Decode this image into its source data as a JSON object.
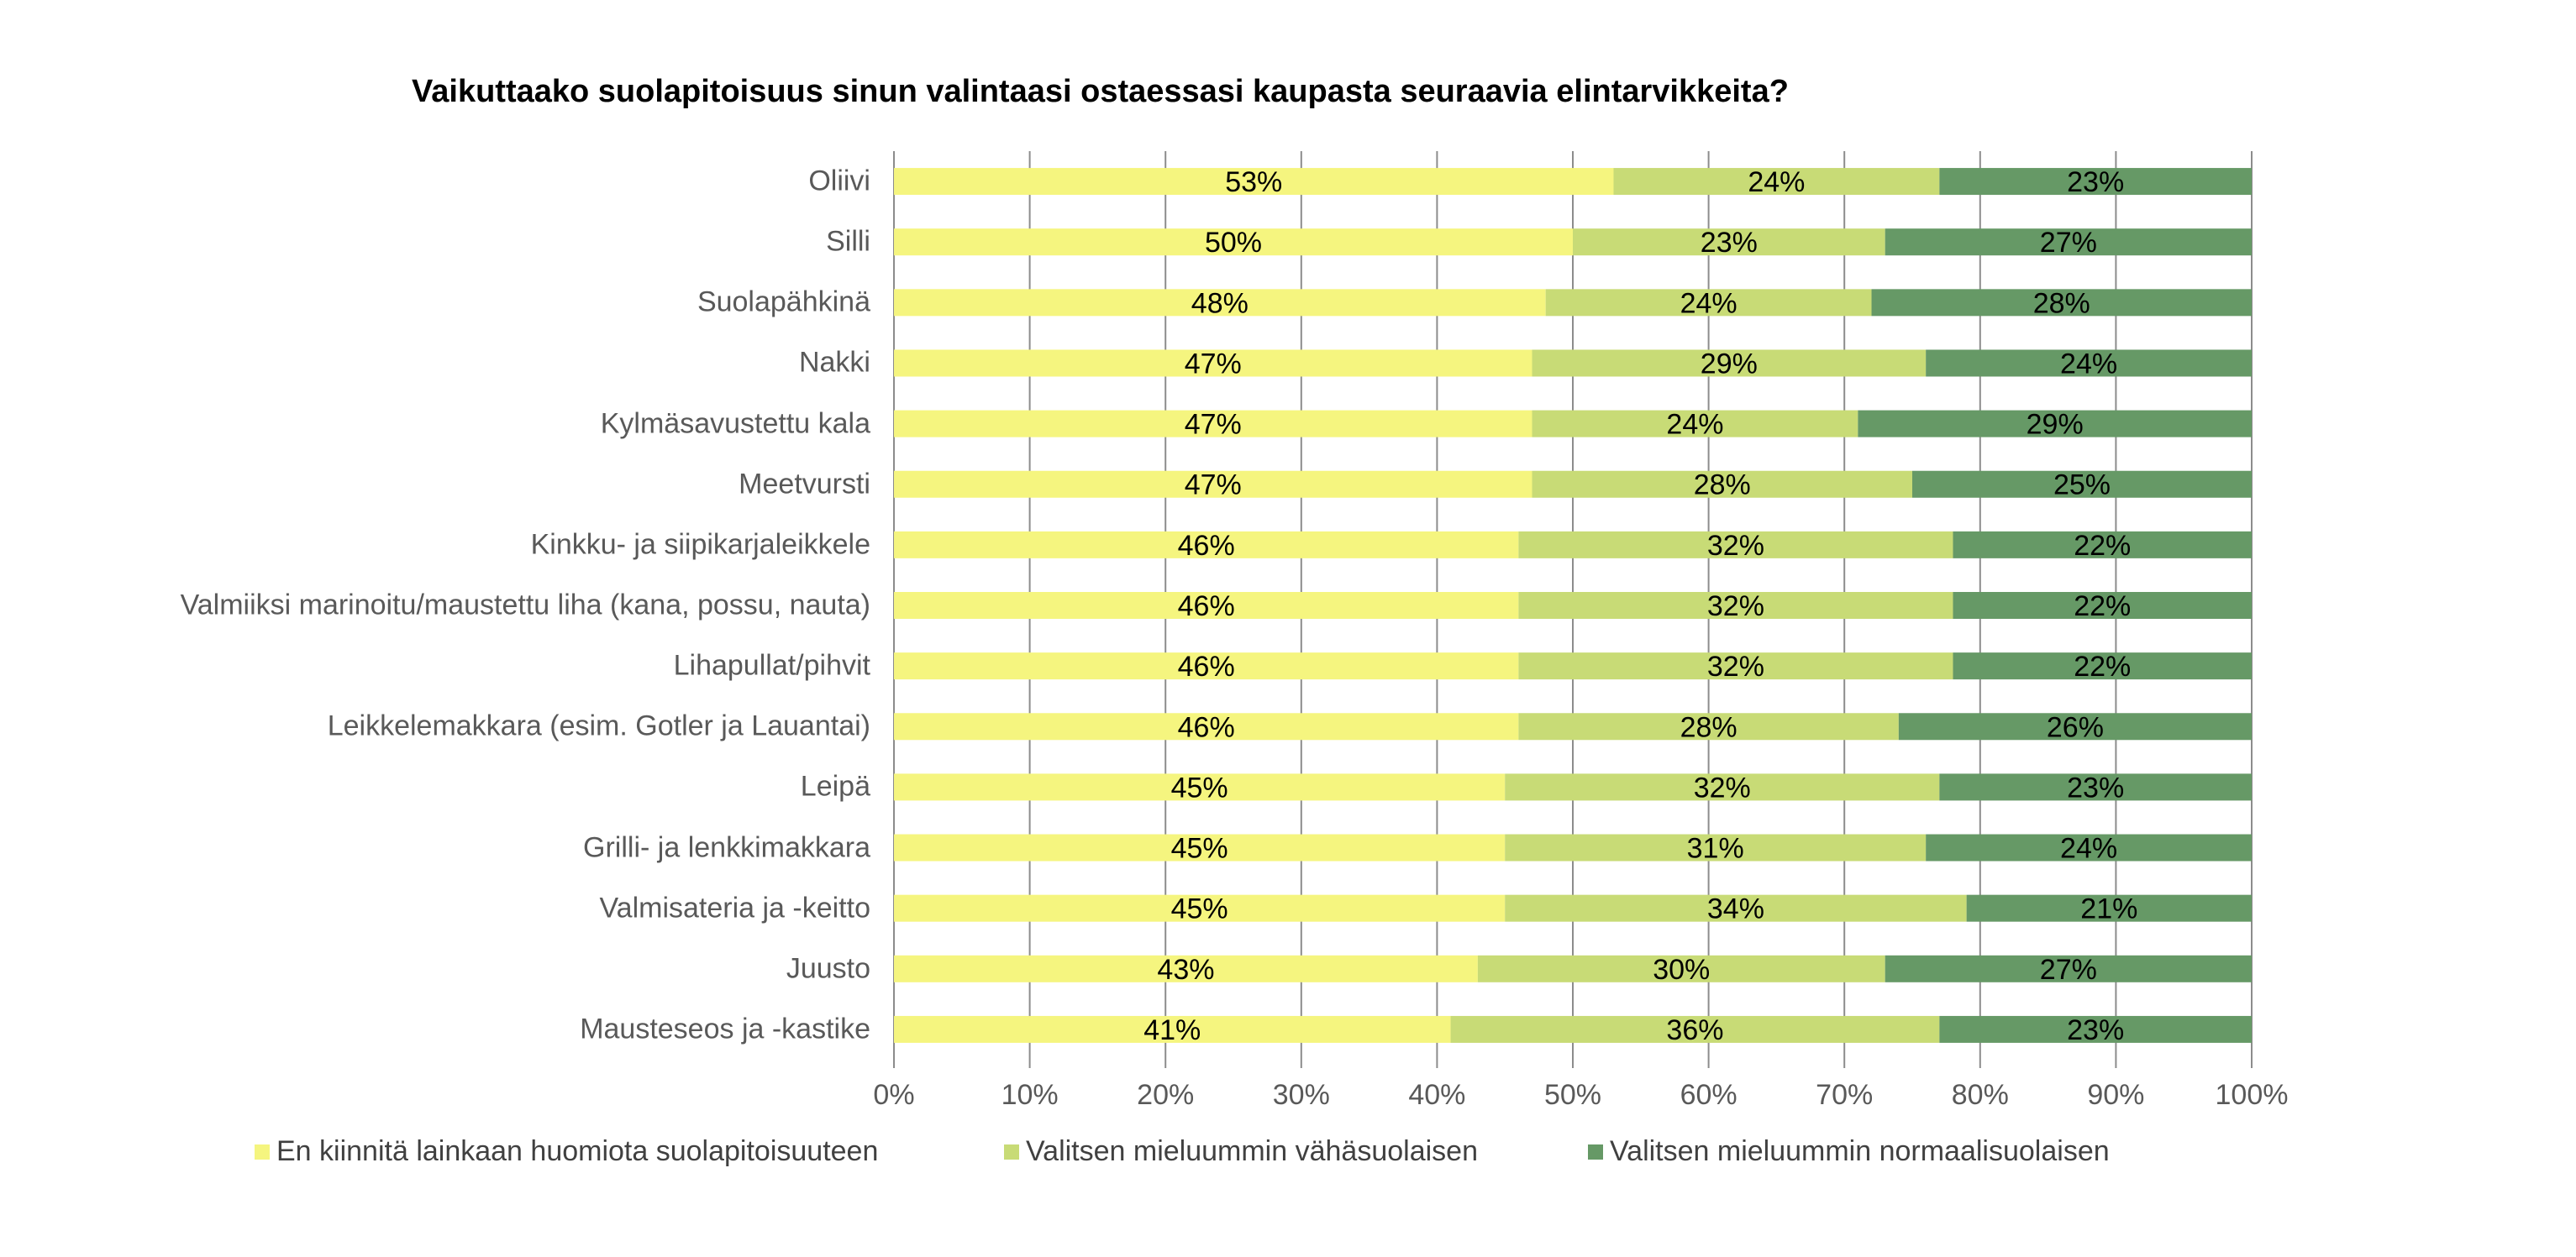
{
  "chart_data": {
    "type": "bar",
    "orientation": "horizontal",
    "stacked": true,
    "percent": true,
    "title": "Vaikuttaako suolapitoisuus sinun valintaasi ostaessasi kaupasta seuraavia elintarvikkeita?",
    "categories": [
      "Oliivi",
      "Silli",
      "Suolapähkinä",
      "Nakki",
      "Kylmäsavustettu kala",
      "Meetvursti",
      "Kinkku- ja siipikarjaleikkele",
      "Valmiiksi marinoitu/maustettu liha (kana, possu, nauta)",
      "Lihapullat/pihvit",
      "Leikkelemakkara (esim. Gotler ja Lauantai)",
      "Leipä",
      "Grilli- ja lenkkimakkara",
      "Valmisateria ja -keitto",
      "Juusto",
      "Mausteseos ja -kastike"
    ],
    "series": [
      {
        "name": "En kiinnitä lainkaan huomiota suolapitoisuuteen",
        "color": "#f5f57f",
        "values": [
          53,
          50,
          48,
          47,
          47,
          47,
          46,
          46,
          46,
          46,
          45,
          45,
          45,
          43,
          41
        ]
      },
      {
        "name": "Valitsen mieluummin vähäsuolaisen",
        "color": "#c8db76",
        "values": [
          24,
          23,
          24,
          29,
          24,
          28,
          32,
          32,
          32,
          28,
          32,
          31,
          34,
          30,
          36
        ]
      },
      {
        "name": "Valitsen mieluummin normaalisuolaisen",
        "color": "#669966",
        "values": [
          23,
          27,
          28,
          24,
          29,
          25,
          22,
          22,
          22,
          26,
          23,
          24,
          21,
          27,
          23
        ]
      }
    ],
    "x_ticks": [
      "0%",
      "10%",
      "20%",
      "30%",
      "40%",
      "50%",
      "60%",
      "70%",
      "80%",
      "90%",
      "100%"
    ],
    "xlim": [
      0,
      100
    ],
    "grid": "vertical",
    "legend_position": "bottom",
    "data_label_suffix": "%"
  }
}
